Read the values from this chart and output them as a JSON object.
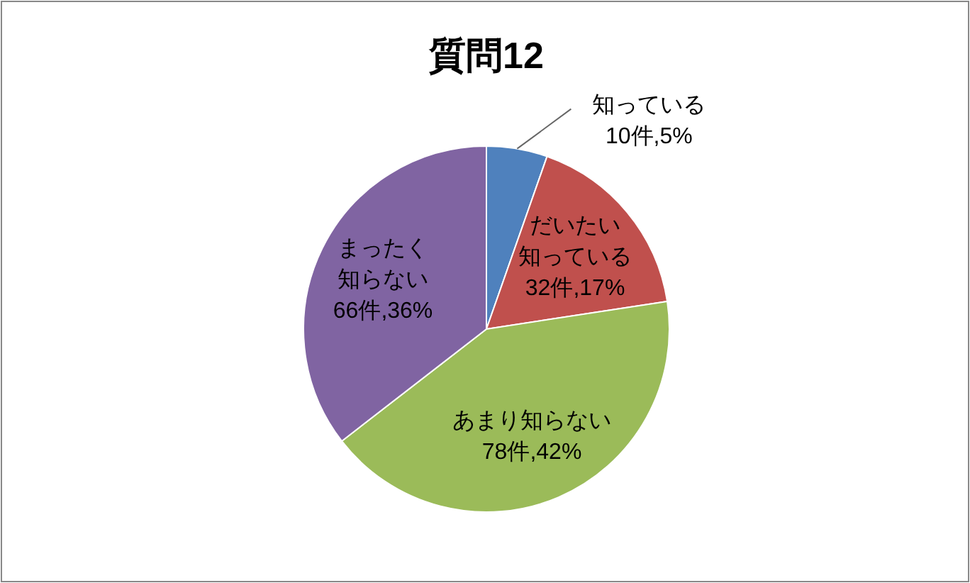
{
  "chart_data": {
    "type": "pie",
    "title": "質問12",
    "categories": [
      "知っている",
      "だいたい知っている",
      "あまり知らない",
      "まったく知らない"
    ],
    "values": [
      10,
      32,
      78,
      66
    ],
    "value_labels": [
      "10件,5%",
      "32件,17%",
      "78件,42%",
      "66件,36%"
    ],
    "colors": [
      "#4f81bd",
      "#c0504d",
      "#9bbb59",
      "#8064a2"
    ],
    "legend": false
  }
}
